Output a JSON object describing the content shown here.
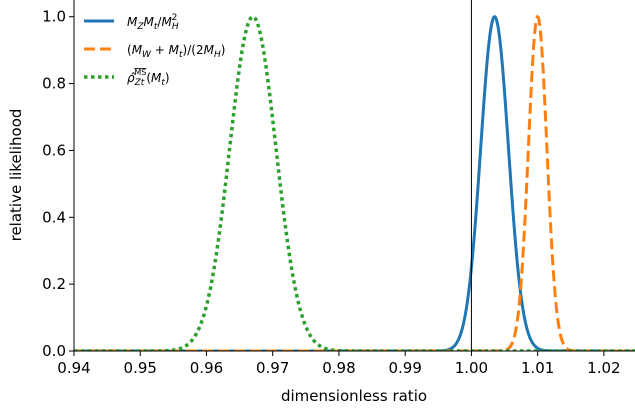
{
  "chart_data": {
    "type": "line",
    "xlabel": "dimensionless ratio",
    "ylabel": "relative likelihood",
    "xlim": [
      0.94,
      1.025
    ],
    "ylim": [
      0.0,
      1.05
    ],
    "x_ticks": [
      "0.94",
      "0.95",
      "0.96",
      "0.97",
      "0.98",
      "0.99",
      "1.00",
      "1.01",
      "1.02"
    ],
    "x_tick_values": [
      0.94,
      0.95,
      0.96,
      0.97,
      0.98,
      0.99,
      1.0,
      1.01,
      1.02
    ],
    "y_ticks": [
      "0.0",
      "0.2",
      "0.4",
      "0.6",
      "0.8",
      "1.0"
    ],
    "y_tick_values": [
      0.0,
      0.2,
      0.4,
      0.6,
      0.8,
      1.0
    ],
    "grid": false,
    "legend_position": "top-left",
    "reference_line": {
      "x": 1.0,
      "color": "#000000"
    },
    "series": [
      {
        "name": "M_Z M_t / M_H^2",
        "color": "#1f77b4",
        "style": "solid",
        "mean": 1.0035,
        "sigma": 0.0021
      },
      {
        "name": "(M_W + M_t) / (2 M_H)",
        "color": "#ff7f0e",
        "style": "dashed",
        "mean": 1.01,
        "sigma": 0.0014
      },
      {
        "name": "rho_hat_Zt^MS-bar (M_t)",
        "color": "#2ca02c",
        "style": "dotted",
        "mean": 0.967,
        "sigma": 0.0035
      }
    ]
  }
}
